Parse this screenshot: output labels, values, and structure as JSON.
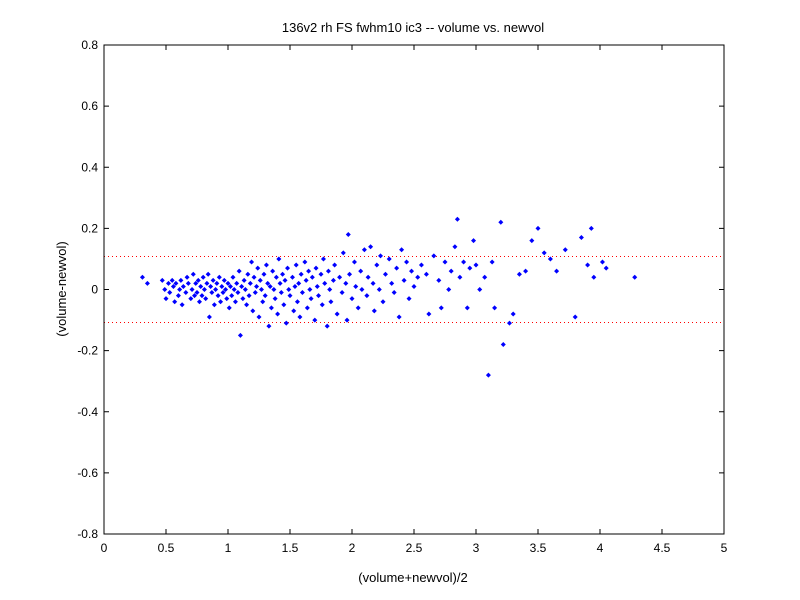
{
  "chart_data": {
    "type": "scatter",
    "title": "136v2 rh FS fwhm10 ic3 -- volume vs. newvol",
    "xlabel": "(volume+newvol)/2",
    "ylabel": "(volume-newvol)",
    "xlim": [
      0,
      5
    ],
    "ylim": [
      -0.8,
      0.8
    ],
    "x_ticks": [
      "0",
      "0.5",
      "1",
      "1.5",
      "2",
      "2.5",
      "3",
      "3.5",
      "4",
      "4.5",
      "5"
    ],
    "y_ticks": [
      "-0.8",
      "-0.6",
      "-0.4",
      "-0.2",
      "0",
      "0.2",
      "0.4",
      "0.6",
      "0.8"
    ],
    "grid": false,
    "marker_color": "#0000ff",
    "reference_line_color": "#ff0000",
    "reference_lines_y": [
      0.108,
      -0.108
    ],
    "series": [
      {
        "points": [
          [
            0.31,
            0.04
          ],
          [
            0.35,
            0.02
          ],
          [
            0.47,
            0.03
          ],
          [
            0.49,
            0.0
          ],
          [
            0.5,
            -0.03
          ],
          [
            0.52,
            0.02
          ],
          [
            0.53,
            -0.01
          ],
          [
            0.55,
            0.03
          ],
          [
            0.56,
            0.01
          ],
          [
            0.57,
            -0.04
          ],
          [
            0.58,
            0.02
          ],
          [
            0.6,
            -0.02
          ],
          [
            0.61,
            0.0
          ],
          [
            0.62,
            0.03
          ],
          [
            0.63,
            -0.05
          ],
          [
            0.64,
            0.01
          ],
          [
            0.66,
            -0.01
          ],
          [
            0.67,
            0.04
          ],
          [
            0.68,
            0.02
          ],
          [
            0.7,
            -0.03
          ],
          [
            0.71,
            0.0
          ],
          [
            0.72,
            0.05
          ],
          [
            0.73,
            -0.02
          ],
          [
            0.74,
            0.02
          ],
          [
            0.75,
            -0.01
          ],
          [
            0.76,
            0.03
          ],
          [
            0.77,
            -0.04
          ],
          [
            0.78,
            0.01
          ],
          [
            0.79,
            -0.02
          ],
          [
            0.8,
            0.04
          ],
          [
            0.81,
            0.0
          ],
          [
            0.82,
            -0.03
          ],
          [
            0.83,
            0.02
          ],
          [
            0.84,
            0.05
          ],
          [
            0.85,
            -0.09
          ],
          [
            0.86,
            0.01
          ],
          [
            0.87,
            -0.01
          ],
          [
            0.88,
            0.03
          ],
          [
            0.89,
            -0.05
          ],
          [
            0.9,
            0.0
          ],
          [
            0.91,
            0.02
          ],
          [
            0.92,
            -0.02
          ],
          [
            0.93,
            0.04
          ],
          [
            0.94,
            -0.04
          ],
          [
            0.95,
            0.01
          ],
          [
            0.96,
            -0.01
          ],
          [
            0.97,
            0.03
          ],
          [
            0.98,
            0.0
          ],
          [
            0.99,
            -0.03
          ],
          [
            1.0,
            0.02
          ],
          [
            1.01,
            -0.06
          ],
          [
            1.02,
            0.01
          ],
          [
            1.03,
            -0.02
          ],
          [
            1.04,
            0.04
          ],
          [
            1.05,
            0.0
          ],
          [
            1.06,
            -0.04
          ],
          [
            1.07,
            0.02
          ],
          [
            1.08,
            -0.01
          ],
          [
            1.09,
            0.06
          ],
          [
            1.1,
            -0.15
          ],
          [
            1.11,
            0.01
          ],
          [
            1.12,
            -0.03
          ],
          [
            1.13,
            0.03
          ],
          [
            1.14,
            0.0
          ],
          [
            1.15,
            -0.05
          ],
          [
            1.16,
            0.05
          ],
          [
            1.17,
            -0.02
          ],
          [
            1.18,
            0.02
          ],
          [
            1.19,
            0.09
          ],
          [
            1.2,
            -0.07
          ],
          [
            1.21,
            0.04
          ],
          [
            1.22,
            -0.01
          ],
          [
            1.23,
            0.01
          ],
          [
            1.24,
            0.07
          ],
          [
            1.25,
            -0.09
          ],
          [
            1.26,
            0.03
          ],
          [
            1.27,
            0.0
          ],
          [
            1.28,
            -0.04
          ],
          [
            1.29,
            0.05
          ],
          [
            1.3,
            -0.02
          ],
          [
            1.31,
            0.08
          ],
          [
            1.32,
            0.02
          ],
          [
            1.33,
            -0.12
          ],
          [
            1.34,
            0.01
          ],
          [
            1.35,
            -0.06
          ],
          [
            1.36,
            0.06
          ],
          [
            1.37,
            0.0
          ],
          [
            1.38,
            -0.03
          ],
          [
            1.39,
            0.04
          ],
          [
            1.4,
            -0.08
          ],
          [
            1.41,
            0.1
          ],
          [
            1.42,
            0.02
          ],
          [
            1.43,
            -0.01
          ],
          [
            1.44,
            0.05
          ],
          [
            1.45,
            -0.05
          ],
          [
            1.46,
            0.03
          ],
          [
            1.47,
            -0.11
          ],
          [
            1.48,
            0.07
          ],
          [
            1.49,
            0.0
          ],
          [
            1.5,
            -0.02
          ],
          [
            1.52,
            0.04
          ],
          [
            1.53,
            -0.07
          ],
          [
            1.54,
            0.01
          ],
          [
            1.55,
            0.08
          ],
          [
            1.56,
            -0.04
          ],
          [
            1.57,
            0.02
          ],
          [
            1.58,
            -0.09
          ],
          [
            1.59,
            0.05
          ],
          [
            1.6,
            -0.01
          ],
          [
            1.62,
            0.09
          ],
          [
            1.63,
            0.03
          ],
          [
            1.64,
            -0.06
          ],
          [
            1.65,
            0.06
          ],
          [
            1.66,
            0.0
          ],
          [
            1.67,
            -0.03
          ],
          [
            1.68,
            0.04
          ],
          [
            1.7,
            -0.1
          ],
          [
            1.71,
            0.07
          ],
          [
            1.72,
            0.01
          ],
          [
            1.73,
            -0.02
          ],
          [
            1.75,
            0.05
          ],
          [
            1.76,
            -0.05
          ],
          [
            1.77,
            0.1
          ],
          [
            1.78,
            0.02
          ],
          [
            1.8,
            -0.12
          ],
          [
            1.81,
            0.06
          ],
          [
            1.82,
            0.0
          ],
          [
            1.83,
            -0.04
          ],
          [
            1.85,
            0.03
          ],
          [
            1.86,
            0.08
          ],
          [
            1.88,
            -0.08
          ],
          [
            1.9,
            0.04
          ],
          [
            1.92,
            -0.01
          ],
          [
            1.93,
            0.12
          ],
          [
            1.95,
            0.02
          ],
          [
            1.96,
            -0.1
          ],
          [
            1.97,
            0.18
          ],
          [
            1.98,
            0.05
          ],
          [
            2.0,
            -0.03
          ],
          [
            2.02,
            0.09
          ],
          [
            2.03,
            0.01
          ],
          [
            2.05,
            -0.06
          ],
          [
            2.07,
            0.06
          ],
          [
            2.08,
            0.0
          ],
          [
            2.1,
            0.13
          ],
          [
            2.12,
            -0.02
          ],
          [
            2.13,
            0.04
          ],
          [
            2.15,
            0.14
          ],
          [
            2.17,
            0.02
          ],
          [
            2.18,
            -0.07
          ],
          [
            2.2,
            0.08
          ],
          [
            2.22,
            0.0
          ],
          [
            2.23,
            0.11
          ],
          [
            2.25,
            -0.04
          ],
          [
            2.27,
            0.05
          ],
          [
            2.3,
            0.1
          ],
          [
            2.32,
            0.02
          ],
          [
            2.34,
            -0.01
          ],
          [
            2.36,
            0.07
          ],
          [
            2.38,
            -0.09
          ],
          [
            2.4,
            0.13
          ],
          [
            2.42,
            0.03
          ],
          [
            2.44,
            0.09
          ],
          [
            2.46,
            -0.03
          ],
          [
            2.48,
            0.06
          ],
          [
            2.5,
            0.01
          ],
          [
            2.53,
            0.04
          ],
          [
            2.56,
            0.08
          ],
          [
            2.6,
            0.05
          ],
          [
            2.62,
            -0.08
          ],
          [
            2.66,
            0.11
          ],
          [
            2.7,
            0.03
          ],
          [
            2.72,
            -0.06
          ],
          [
            2.75,
            0.09
          ],
          [
            2.78,
            0.0
          ],
          [
            2.8,
            0.06
          ],
          [
            2.83,
            0.14
          ],
          [
            2.85,
            0.23
          ],
          [
            2.87,
            0.04
          ],
          [
            2.9,
            0.09
          ],
          [
            2.93,
            -0.06
          ],
          [
            2.95,
            0.07
          ],
          [
            2.98,
            0.16
          ],
          [
            3.0,
            0.08
          ],
          [
            3.03,
            0.0
          ],
          [
            3.07,
            0.04
          ],
          [
            3.1,
            -0.28
          ],
          [
            3.13,
            0.09
          ],
          [
            3.15,
            -0.06
          ],
          [
            3.2,
            0.22
          ],
          [
            3.22,
            -0.18
          ],
          [
            3.27,
            -0.11
          ],
          [
            3.3,
            -0.08
          ],
          [
            3.35,
            0.05
          ],
          [
            3.4,
            0.06
          ],
          [
            3.45,
            0.16
          ],
          [
            3.5,
            0.2
          ],
          [
            3.55,
            0.12
          ],
          [
            3.6,
            0.1
          ],
          [
            3.65,
            0.06
          ],
          [
            3.72,
            0.13
          ],
          [
            3.8,
            -0.09
          ],
          [
            3.85,
            0.17
          ],
          [
            3.9,
            0.08
          ],
          [
            3.93,
            0.2
          ],
          [
            3.95,
            0.04
          ],
          [
            4.02,
            0.09
          ],
          [
            4.05,
            0.07
          ],
          [
            4.28,
            0.04
          ]
        ]
      }
    ]
  }
}
